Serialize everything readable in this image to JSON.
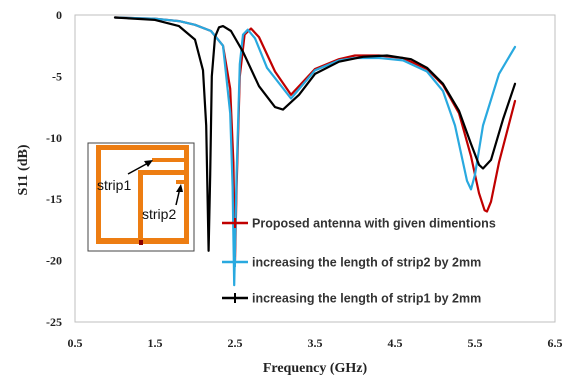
{
  "chart_data": {
    "type": "line",
    "xlabel": "Frequency (GHz)",
    "ylabel": "S11 (dB)",
    "xlim": [
      0.5,
      6.5
    ],
    "ylim": [
      -25,
      0
    ],
    "x_ticks": [
      0.5,
      1.5,
      2.5,
      3.5,
      4.5,
      5.5,
      6.5
    ],
    "x_tick_labels": [
      "0.5",
      "1.5",
      "2.5",
      "3.5",
      "4.5",
      "5.5",
      "6.5"
    ],
    "y_ticks": [
      0,
      -5,
      -10,
      -15,
      -20,
      -25
    ],
    "y_tick_labels": [
      "0",
      "-5",
      "-10",
      "-15",
      "-20",
      "-25"
    ],
    "grid": false,
    "legend_position": "bottom-center",
    "series": [
      {
        "name": "Proposed antenna with given dimentions",
        "color": "#c00000",
        "x": [
          1.0,
          1.5,
          1.8,
          2.0,
          2.2,
          2.35,
          2.44,
          2.48,
          2.5,
          2.52,
          2.56,
          2.62,
          2.7,
          2.8,
          3.0,
          3.2,
          3.5,
          3.8,
          4.0,
          4.3,
          4.6,
          4.9,
          5.1,
          5.3,
          5.45,
          5.55,
          5.62,
          5.65,
          5.7,
          5.8,
          6.0
        ],
        "y": [
          -0.2,
          -0.3,
          -0.5,
          -0.8,
          -1.3,
          -2.5,
          -6.0,
          -12.0,
          -20.0,
          -14.0,
          -5.0,
          -1.6,
          -1.1,
          -1.8,
          -4.6,
          -6.5,
          -4.4,
          -3.6,
          -3.3,
          -3.3,
          -3.5,
          -4.4,
          -5.7,
          -8.0,
          -11.5,
          -14.5,
          -15.9,
          -16.0,
          -15.2,
          -12.0,
          -7.0
        ]
      },
      {
        "name": "increasing the length of strip2 by 2mm",
        "color": "#29a9df",
        "x": [
          1.0,
          1.5,
          1.8,
          2.0,
          2.2,
          2.35,
          2.44,
          2.47,
          2.49,
          2.52,
          2.56,
          2.6,
          2.66,
          2.75,
          2.9,
          3.2,
          3.5,
          3.8,
          4.0,
          4.3,
          4.6,
          4.9,
          5.1,
          5.25,
          5.4,
          5.45,
          5.5,
          5.6,
          5.8,
          6.0
        ],
        "y": [
          -0.2,
          -0.3,
          -0.5,
          -0.8,
          -1.3,
          -2.5,
          -8.0,
          -14.0,
          -22.0,
          -13.0,
          -4.0,
          -1.6,
          -1.2,
          -1.9,
          -4.3,
          -6.8,
          -4.5,
          -3.7,
          -3.5,
          -3.5,
          -3.7,
          -4.6,
          -6.2,
          -9.0,
          -13.5,
          -14.2,
          -13.0,
          -9.0,
          -4.8,
          -2.6
        ]
      },
      {
        "name": "increasing the length of strip1 by 2mm",
        "color": "#000000",
        "x": [
          1.0,
          1.5,
          1.8,
          2.0,
          2.1,
          2.14,
          2.17,
          2.19,
          2.21,
          2.25,
          2.3,
          2.35,
          2.45,
          2.6,
          2.8,
          3.0,
          3.1,
          3.3,
          3.5,
          3.8,
          4.1,
          4.4,
          4.7,
          4.9,
          5.1,
          5.3,
          5.45,
          5.55,
          5.6,
          5.7,
          5.85,
          6.0
        ],
        "y": [
          -0.2,
          -0.4,
          -0.9,
          -2.0,
          -4.5,
          -9.0,
          -19.2,
          -13.0,
          -5.0,
          -1.8,
          -1.0,
          -0.9,
          -1.3,
          -3.0,
          -5.8,
          -7.5,
          -7.7,
          -6.5,
          -4.8,
          -3.8,
          -3.4,
          -3.3,
          -3.6,
          -4.3,
          -5.6,
          -7.8,
          -10.5,
          -12.2,
          -12.5,
          -11.8,
          -8.5,
          -5.6
        ]
      }
    ]
  },
  "inset": {
    "label_strip1": "strip1",
    "label_strip2": "strip2",
    "metal_color": "#ed7d12"
  }
}
